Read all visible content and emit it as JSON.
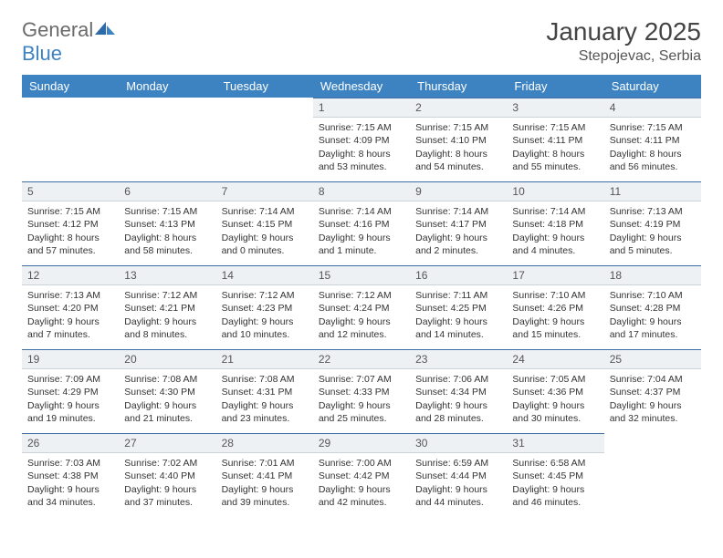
{
  "brand": {
    "name_a": "General",
    "name_b": "Blue"
  },
  "title": "January 2025",
  "location": "Stepojevac, Serbia",
  "colors": {
    "header_bg": "#3d83c2",
    "header_text": "#ffffff",
    "daynum_bg": "#eef1f4",
    "daynum_border_top": "#3d6fa3",
    "text": "#333333",
    "page_bg": "#ffffff"
  },
  "typography": {
    "title_fontsize": 28,
    "location_fontsize": 16,
    "header_fontsize": 13,
    "cell_fontsize": 10.5
  },
  "day_headers": [
    "Sunday",
    "Monday",
    "Tuesday",
    "Wednesday",
    "Thursday",
    "Friday",
    "Saturday"
  ],
  "weeks": [
    [
      {
        "empty": true
      },
      {
        "empty": true
      },
      {
        "empty": true
      },
      {
        "num": "1",
        "sunrise": "Sunrise: 7:15 AM",
        "sunset": "Sunset: 4:09 PM",
        "daylight": "Daylight: 8 hours and 53 minutes."
      },
      {
        "num": "2",
        "sunrise": "Sunrise: 7:15 AM",
        "sunset": "Sunset: 4:10 PM",
        "daylight": "Daylight: 8 hours and 54 minutes."
      },
      {
        "num": "3",
        "sunrise": "Sunrise: 7:15 AM",
        "sunset": "Sunset: 4:11 PM",
        "daylight": "Daylight: 8 hours and 55 minutes."
      },
      {
        "num": "4",
        "sunrise": "Sunrise: 7:15 AM",
        "sunset": "Sunset: 4:11 PM",
        "daylight": "Daylight: 8 hours and 56 minutes."
      }
    ],
    [
      {
        "num": "5",
        "sunrise": "Sunrise: 7:15 AM",
        "sunset": "Sunset: 4:12 PM",
        "daylight": "Daylight: 8 hours and 57 minutes."
      },
      {
        "num": "6",
        "sunrise": "Sunrise: 7:15 AM",
        "sunset": "Sunset: 4:13 PM",
        "daylight": "Daylight: 8 hours and 58 minutes."
      },
      {
        "num": "7",
        "sunrise": "Sunrise: 7:14 AM",
        "sunset": "Sunset: 4:15 PM",
        "daylight": "Daylight: 9 hours and 0 minutes."
      },
      {
        "num": "8",
        "sunrise": "Sunrise: 7:14 AM",
        "sunset": "Sunset: 4:16 PM",
        "daylight": "Daylight: 9 hours and 1 minute."
      },
      {
        "num": "9",
        "sunrise": "Sunrise: 7:14 AM",
        "sunset": "Sunset: 4:17 PM",
        "daylight": "Daylight: 9 hours and 2 minutes."
      },
      {
        "num": "10",
        "sunrise": "Sunrise: 7:14 AM",
        "sunset": "Sunset: 4:18 PM",
        "daylight": "Daylight: 9 hours and 4 minutes."
      },
      {
        "num": "11",
        "sunrise": "Sunrise: 7:13 AM",
        "sunset": "Sunset: 4:19 PM",
        "daylight": "Daylight: 9 hours and 5 minutes."
      }
    ],
    [
      {
        "num": "12",
        "sunrise": "Sunrise: 7:13 AM",
        "sunset": "Sunset: 4:20 PM",
        "daylight": "Daylight: 9 hours and 7 minutes."
      },
      {
        "num": "13",
        "sunrise": "Sunrise: 7:12 AM",
        "sunset": "Sunset: 4:21 PM",
        "daylight": "Daylight: 9 hours and 8 minutes."
      },
      {
        "num": "14",
        "sunrise": "Sunrise: 7:12 AM",
        "sunset": "Sunset: 4:23 PM",
        "daylight": "Daylight: 9 hours and 10 minutes."
      },
      {
        "num": "15",
        "sunrise": "Sunrise: 7:12 AM",
        "sunset": "Sunset: 4:24 PM",
        "daylight": "Daylight: 9 hours and 12 minutes."
      },
      {
        "num": "16",
        "sunrise": "Sunrise: 7:11 AM",
        "sunset": "Sunset: 4:25 PM",
        "daylight": "Daylight: 9 hours and 14 minutes."
      },
      {
        "num": "17",
        "sunrise": "Sunrise: 7:10 AM",
        "sunset": "Sunset: 4:26 PM",
        "daylight": "Daylight: 9 hours and 15 minutes."
      },
      {
        "num": "18",
        "sunrise": "Sunrise: 7:10 AM",
        "sunset": "Sunset: 4:28 PM",
        "daylight": "Daylight: 9 hours and 17 minutes."
      }
    ],
    [
      {
        "num": "19",
        "sunrise": "Sunrise: 7:09 AM",
        "sunset": "Sunset: 4:29 PM",
        "daylight": "Daylight: 9 hours and 19 minutes."
      },
      {
        "num": "20",
        "sunrise": "Sunrise: 7:08 AM",
        "sunset": "Sunset: 4:30 PM",
        "daylight": "Daylight: 9 hours and 21 minutes."
      },
      {
        "num": "21",
        "sunrise": "Sunrise: 7:08 AM",
        "sunset": "Sunset: 4:31 PM",
        "daylight": "Daylight: 9 hours and 23 minutes."
      },
      {
        "num": "22",
        "sunrise": "Sunrise: 7:07 AM",
        "sunset": "Sunset: 4:33 PM",
        "daylight": "Daylight: 9 hours and 25 minutes."
      },
      {
        "num": "23",
        "sunrise": "Sunrise: 7:06 AM",
        "sunset": "Sunset: 4:34 PM",
        "daylight": "Daylight: 9 hours and 28 minutes."
      },
      {
        "num": "24",
        "sunrise": "Sunrise: 7:05 AM",
        "sunset": "Sunset: 4:36 PM",
        "daylight": "Daylight: 9 hours and 30 minutes."
      },
      {
        "num": "25",
        "sunrise": "Sunrise: 7:04 AM",
        "sunset": "Sunset: 4:37 PM",
        "daylight": "Daylight: 9 hours and 32 minutes."
      }
    ],
    [
      {
        "num": "26",
        "sunrise": "Sunrise: 7:03 AM",
        "sunset": "Sunset: 4:38 PM",
        "daylight": "Daylight: 9 hours and 34 minutes."
      },
      {
        "num": "27",
        "sunrise": "Sunrise: 7:02 AM",
        "sunset": "Sunset: 4:40 PM",
        "daylight": "Daylight: 9 hours and 37 minutes."
      },
      {
        "num": "28",
        "sunrise": "Sunrise: 7:01 AM",
        "sunset": "Sunset: 4:41 PM",
        "daylight": "Daylight: 9 hours and 39 minutes."
      },
      {
        "num": "29",
        "sunrise": "Sunrise: 7:00 AM",
        "sunset": "Sunset: 4:42 PM",
        "daylight": "Daylight: 9 hours and 42 minutes."
      },
      {
        "num": "30",
        "sunrise": "Sunrise: 6:59 AM",
        "sunset": "Sunset: 4:44 PM",
        "daylight": "Daylight: 9 hours and 44 minutes."
      },
      {
        "num": "31",
        "sunrise": "Sunrise: 6:58 AM",
        "sunset": "Sunset: 4:45 PM",
        "daylight": "Daylight: 9 hours and 46 minutes."
      },
      {
        "empty": true
      }
    ]
  ]
}
